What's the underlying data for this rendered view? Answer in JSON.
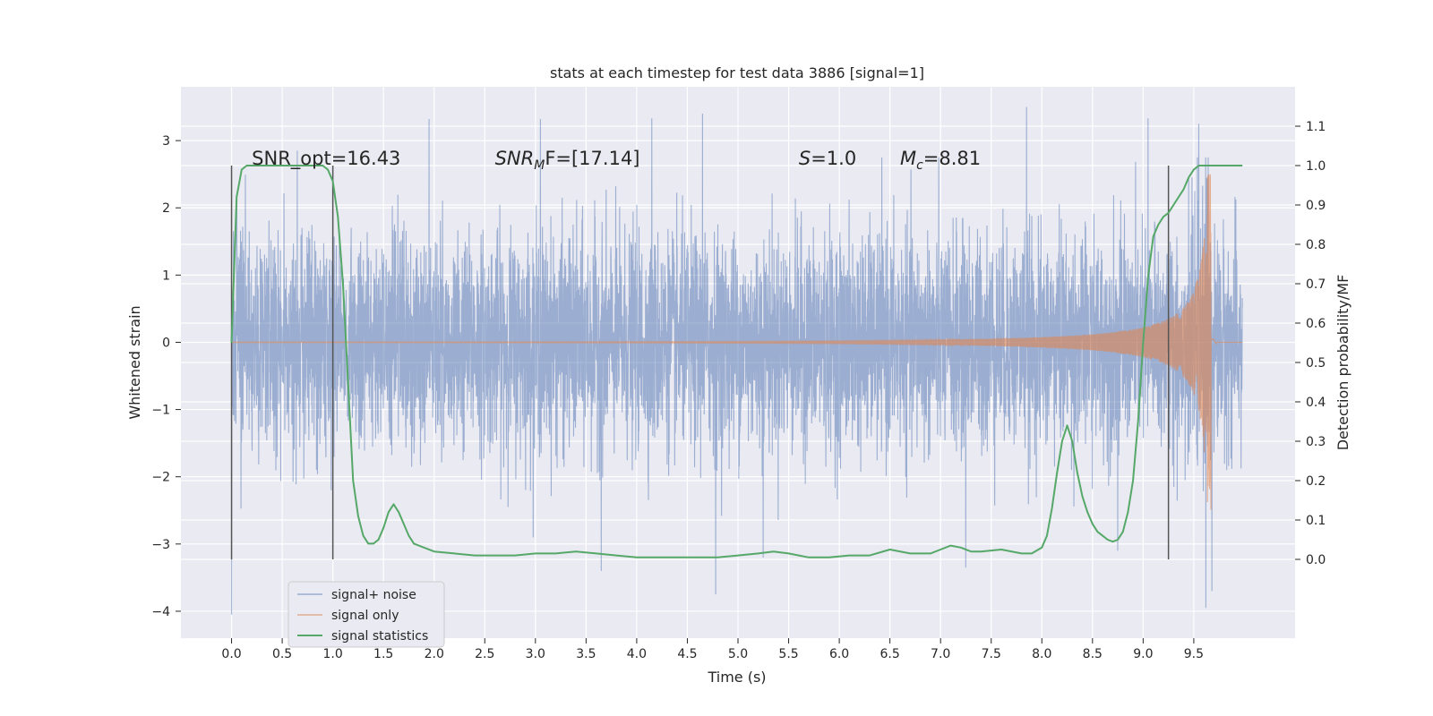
{
  "chart_data": {
    "type": "line",
    "title": "stats at each timestep for test data 3886 [signal=1]",
    "xlabel": "Time (s)",
    "ylabel": "Whitened strain",
    "y2label": "Detection probability/MF",
    "xlim": [
      -0.5,
      10.5
    ],
    "ylim": [
      -4.4,
      3.8
    ],
    "y2lim": [
      -0.2,
      1.2
    ],
    "xticks": [
      0.0,
      0.5,
      1.0,
      1.5,
      2.0,
      2.5,
      3.0,
      3.5,
      4.0,
      4.5,
      5.0,
      5.5,
      6.0,
      6.5,
      7.0,
      7.5,
      8.0,
      8.5,
      9.0,
      9.5
    ],
    "yticks": [
      -4,
      -3,
      -2,
      -1,
      0,
      1,
      2,
      3
    ],
    "y2ticks": [
      0.0,
      0.1,
      0.2,
      0.3,
      0.4,
      0.5,
      0.6,
      0.7,
      0.8,
      0.9,
      1.0,
      1.1
    ],
    "grid": true,
    "legend_position": "lower-left",
    "annotations": [
      {
        "text": "SNR_opt=16.43",
        "x": 0.2
      },
      {
        "html": "<tspan font-style=\"italic\">SNR</tspan><tspan font-style=\"italic\" font-size=\"14\" dy=\"5\">M</tspan><tspan dy=\"-5\">F=[17.14]</tspan>",
        "x": 2.6
      },
      {
        "html": "<tspan font-style=\"italic\">S</tspan>=1.0",
        "x": 5.6
      },
      {
        "html": "<tspan font-style=\"italic\">M</tspan><tspan font-style=\"italic\" font-size=\"14\" dy=\"5\">c</tspan><tspan dy=\"-5\">=8.81</tspan>",
        "x": 6.6
      }
    ],
    "window_markers": [
      0.0,
      1.0,
      9.25
    ],
    "series": [
      {
        "name": "signal+ noise",
        "color": "#4c72b0",
        "opacity": 0.5,
        "x_range": [
          0.0,
          9.98
        ],
        "envelope_sigma": 0.78,
        "peaks": [
          [
            0.0,
            -4.05
          ],
          [
            1.95,
            3.32
          ],
          [
            3.05,
            3.32
          ],
          [
            3.65,
            -3.4
          ],
          [
            4.15,
            3.33
          ],
          [
            4.65,
            3.4
          ],
          [
            4.78,
            -3.75
          ],
          [
            5.25,
            -3.2
          ],
          [
            7.25,
            -3.35
          ],
          [
            7.85,
            3.5
          ],
          [
            9.05,
            3.33
          ],
          [
            9.55,
            3.25
          ],
          [
            9.62,
            -3.95
          ],
          [
            9.68,
            -3.7
          ],
          [
            8.75,
            -3.1
          ],
          [
            0.65,
            2.85
          ]
        ]
      },
      {
        "name": "signal only",
        "color": "#dd8452",
        "opacity": 0.6,
        "chirp": {
          "t_coalescence": 9.67,
          "amp_start": 0.005,
          "amp_peak": 2.5,
          "freq_start": 30,
          "freq_end": 250
        }
      },
      {
        "name": "signal statistics",
        "color": "#55a868",
        "axis": "right",
        "x": [
          0.0,
          0.05,
          0.1,
          0.15,
          0.2,
          0.3,
          0.4,
          0.5,
          0.6,
          0.7,
          0.8,
          0.9,
          0.95,
          1.0,
          1.05,
          1.1,
          1.15,
          1.2,
          1.25,
          1.3,
          1.35,
          1.4,
          1.45,
          1.5,
          1.55,
          1.6,
          1.65,
          1.7,
          1.75,
          1.8,
          1.9,
          2.0,
          2.2,
          2.4,
          2.6,
          2.8,
          3.0,
          3.2,
          3.4,
          3.6,
          3.8,
          4.0,
          4.2,
          4.4,
          4.6,
          4.8,
          5.0,
          5.2,
          5.35,
          5.5,
          5.7,
          5.9,
          6.1,
          6.3,
          6.5,
          6.7,
          6.9,
          7.0,
          7.1,
          7.2,
          7.3,
          7.4,
          7.6,
          7.8,
          7.9,
          8.0,
          8.05,
          8.1,
          8.15,
          8.2,
          8.25,
          8.3,
          8.35,
          8.4,
          8.45,
          8.5,
          8.55,
          8.6,
          8.65,
          8.7,
          8.75,
          8.8,
          8.85,
          8.9,
          8.95,
          9.0,
          9.05,
          9.1,
          9.15,
          9.2,
          9.25,
          9.3,
          9.35,
          9.4,
          9.45,
          9.5,
          9.55,
          9.6,
          9.65,
          9.7,
          9.8,
          9.9,
          9.98
        ],
        "values": [
          0.55,
          0.92,
          0.99,
          1.0,
          1.0,
          1.0,
          1.0,
          1.0,
          1.0,
          1.0,
          1.0,
          1.0,
          0.99,
          0.96,
          0.87,
          0.7,
          0.45,
          0.2,
          0.11,
          0.06,
          0.04,
          0.04,
          0.05,
          0.08,
          0.12,
          0.14,
          0.12,
          0.09,
          0.06,
          0.04,
          0.03,
          0.02,
          0.015,
          0.01,
          0.01,
          0.01,
          0.015,
          0.015,
          0.02,
          0.015,
          0.01,
          0.005,
          0.005,
          0.005,
          0.005,
          0.005,
          0.01,
          0.015,
          0.02,
          0.015,
          0.005,
          0.005,
          0.01,
          0.01,
          0.025,
          0.015,
          0.015,
          0.025,
          0.035,
          0.03,
          0.02,
          0.02,
          0.025,
          0.015,
          0.015,
          0.03,
          0.06,
          0.13,
          0.22,
          0.3,
          0.34,
          0.3,
          0.22,
          0.16,
          0.12,
          0.09,
          0.07,
          0.06,
          0.05,
          0.045,
          0.05,
          0.07,
          0.12,
          0.2,
          0.35,
          0.55,
          0.72,
          0.82,
          0.85,
          0.87,
          0.88,
          0.9,
          0.92,
          0.94,
          0.97,
          0.99,
          1.0,
          1.0,
          1.0,
          1.0,
          1.0,
          1.0,
          1.0
        ]
      }
    ]
  }
}
